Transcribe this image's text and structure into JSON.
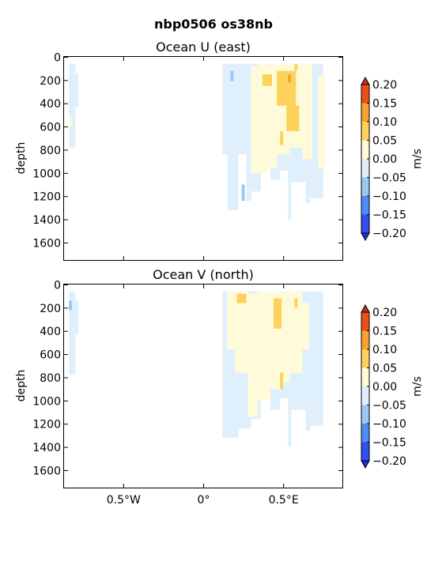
{
  "figure_title": "nbp0506 os38nb",
  "chart_data": [
    {
      "type": "heatmap",
      "title": "Ocean U (east)",
      "ylabel": "depth",
      "xlabel": "",
      "xlim": [
        -0.87,
        0.87
      ],
      "ylim": [
        1750,
        0
      ],
      "x_ticks": [
        -0.5,
        0,
        0.5
      ],
      "x_tick_labels": [
        "",
        "",
        ""
      ],
      "y_ticks": [
        0,
        200,
        400,
        600,
        800,
        1000,
        1200,
        1400,
        1600
      ],
      "y_tick_labels": [
        "0",
        "200",
        "400",
        "600",
        "800",
        "1000",
        "1200",
        "1400",
        "1600"
      ],
      "colorbar": {
        "label": "m/s",
        "levels": [
          -0.2,
          -0.15,
          -0.1,
          -0.05,
          0.0,
          0.05,
          0.1,
          0.15,
          0.2
        ],
        "tick_labels": [
          "−0.20",
          "−0.15",
          "−0.10",
          "−0.05",
          "0.00",
          "0.05",
          "0.10",
          "0.15",
          "0.20"
        ],
        "colors": [
          "#3050f0",
          "#4f8cf5",
          "#9cc7f5",
          "#dff0fc",
          "#fffbd9",
          "#fdd25c",
          "#f8a030",
          "#e8501e"
        ],
        "extend": "both"
      },
      "cells": [
        {
          "x0": -0.84,
          "x1": -0.8,
          "y0": 60,
          "y1": 780,
          "v": -0.02
        },
        {
          "x0": -0.8,
          "x1": -0.78,
          "y0": 140,
          "y1": 430,
          "v": -0.02
        },
        {
          "x0": -0.84,
          "x1": -0.82,
          "y0": 520,
          "y1": 600,
          "v": 0.02
        },
        {
          "x0": 0.12,
          "x1": 0.15,
          "y0": 60,
          "y1": 840,
          "v": -0.02
        },
        {
          "x0": 0.15,
          "x1": 0.22,
          "y0": 60,
          "y1": 1320,
          "v": -0.02
        },
        {
          "x0": 0.22,
          "x1": 0.27,
          "y0": 60,
          "y1": 840,
          "v": -0.02
        },
        {
          "x0": 0.27,
          "x1": 0.3,
          "y0": 60,
          "y1": 1240,
          "v": -0.02
        },
        {
          "x0": 0.3,
          "x1": 0.36,
          "y0": 60,
          "y1": 1160,
          "v": -0.02
        },
        {
          "x0": 0.36,
          "x1": 0.42,
          "y0": 60,
          "y1": 900,
          "v": -0.02
        },
        {
          "x0": 0.42,
          "x1": 0.48,
          "y0": 60,
          "y1": 1060,
          "v": -0.02
        },
        {
          "x0": 0.48,
          "x1": 0.53,
          "y0": 60,
          "y1": 980,
          "v": -0.02
        },
        {
          "x0": 0.53,
          "x1": 0.55,
          "y0": 60,
          "y1": 1400,
          "v": -0.02
        },
        {
          "x0": 0.55,
          "x1": 0.64,
          "y0": 60,
          "y1": 1080,
          "v": -0.02
        },
        {
          "x0": 0.64,
          "x1": 0.67,
          "y0": 60,
          "y1": 1260,
          "v": -0.02
        },
        {
          "x0": 0.67,
          "x1": 0.75,
          "y0": 60,
          "y1": 1220,
          "v": -0.02
        },
        {
          "x0": 0.3,
          "x1": 0.34,
          "y0": 80,
          "y1": 1000,
          "v": 0.02
        },
        {
          "x0": 0.34,
          "x1": 0.4,
          "y0": 60,
          "y1": 1000,
          "v": 0.02
        },
        {
          "x0": 0.4,
          "x1": 0.46,
          "y0": 60,
          "y1": 960,
          "v": 0.02
        },
        {
          "x0": 0.46,
          "x1": 0.54,
          "y0": 60,
          "y1": 840,
          "v": 0.02
        },
        {
          "x0": 0.54,
          "x1": 0.62,
          "y0": 60,
          "y1": 780,
          "v": 0.02
        },
        {
          "x0": 0.62,
          "x1": 0.68,
          "y0": 60,
          "y1": 880,
          "v": 0.02
        },
        {
          "x0": 0.72,
          "x1": 0.76,
          "y0": 160,
          "y1": 960,
          "v": 0.02
        },
        {
          "x0": 0.37,
          "x1": 0.43,
          "y0": 150,
          "y1": 250,
          "v": 0.07
        },
        {
          "x0": 0.46,
          "x1": 0.58,
          "y0": 120,
          "y1": 420,
          "v": 0.07
        },
        {
          "x0": 0.52,
          "x1": 0.6,
          "y0": 420,
          "y1": 640,
          "v": 0.07
        },
        {
          "x0": 0.48,
          "x1": 0.5,
          "y0": 640,
          "y1": 760,
          "v": 0.07
        },
        {
          "x0": 0.57,
          "x1": 0.59,
          "y0": 60,
          "y1": 120,
          "v": 0.07
        },
        {
          "x0": 0.53,
          "x1": 0.55,
          "y0": 150,
          "y1": 220,
          "v": 0.12
        },
        {
          "x0": 0.17,
          "x1": 0.19,
          "y0": 120,
          "y1": 210,
          "v": -0.07
        },
        {
          "x0": 0.24,
          "x1": 0.26,
          "y0": 1100,
          "y1": 1240,
          "v": -0.07
        }
      ]
    },
    {
      "type": "heatmap",
      "title": "Ocean V (north)",
      "ylabel": "depth",
      "xlabel": "",
      "xlim": [
        -0.87,
        0.87
      ],
      "ylim": [
        1750,
        0
      ],
      "x_ticks": [
        -0.5,
        0,
        0.5
      ],
      "x_tick_labels": [
        "0.5°W",
        "0°",
        "0.5°E"
      ],
      "y_ticks": [
        0,
        200,
        400,
        600,
        800,
        1000,
        1200,
        1400,
        1600
      ],
      "y_tick_labels": [
        "0",
        "200",
        "400",
        "600",
        "800",
        "1000",
        "1200",
        "1400",
        "1600"
      ],
      "colorbar": {
        "label": "m/s",
        "levels": [
          -0.2,
          -0.15,
          -0.1,
          -0.05,
          0.0,
          0.05,
          0.1,
          0.15,
          0.2
        ],
        "tick_labels": [
          "−0.20",
          "−0.15",
          "−0.10",
          "−0.05",
          "0.00",
          "0.05",
          "0.10",
          "0.15",
          "0.20"
        ],
        "colors": [
          "#3050f0",
          "#4f8cf5",
          "#9cc7f5",
          "#dff0fc",
          "#fffbd9",
          "#fdd25c",
          "#f8a030",
          "#e8501e"
        ],
        "extend": "both"
      },
      "cells": [
        {
          "x0": -0.84,
          "x1": -0.8,
          "y0": 60,
          "y1": 780,
          "v": -0.02
        },
        {
          "x0": -0.8,
          "x1": -0.78,
          "y0": 140,
          "y1": 430,
          "v": -0.02
        },
        {
          "x0": -0.84,
          "x1": -0.82,
          "y0": 140,
          "y1": 220,
          "v": -0.07
        },
        {
          "x0": 0.12,
          "x1": 0.15,
          "y0": 60,
          "y1": 1320,
          "v": -0.02
        },
        {
          "x0": 0.15,
          "x1": 0.22,
          "y0": 60,
          "y1": 1320,
          "v": -0.02
        },
        {
          "x0": 0.22,
          "x1": 0.27,
          "y0": 60,
          "y1": 1240,
          "v": -0.02
        },
        {
          "x0": 0.27,
          "x1": 0.3,
          "y0": 60,
          "y1": 1240,
          "v": -0.02
        },
        {
          "x0": 0.3,
          "x1": 0.36,
          "y0": 60,
          "y1": 1160,
          "v": -0.02
        },
        {
          "x0": 0.36,
          "x1": 0.42,
          "y0": 60,
          "y1": 900,
          "v": -0.02
        },
        {
          "x0": 0.42,
          "x1": 0.48,
          "y0": 60,
          "y1": 1080,
          "v": -0.02
        },
        {
          "x0": 0.48,
          "x1": 0.53,
          "y0": 60,
          "y1": 980,
          "v": -0.02
        },
        {
          "x0": 0.53,
          "x1": 0.55,
          "y0": 60,
          "y1": 1400,
          "v": -0.02
        },
        {
          "x0": 0.55,
          "x1": 0.64,
          "y0": 60,
          "y1": 1080,
          "v": -0.02
        },
        {
          "x0": 0.64,
          "x1": 0.67,
          "y0": 60,
          "y1": 1260,
          "v": -0.02
        },
        {
          "x0": 0.67,
          "x1": 0.75,
          "y0": 60,
          "y1": 1220,
          "v": -0.02
        },
        {
          "x0": 0.15,
          "x1": 0.2,
          "y0": 60,
          "y1": 560,
          "v": 0.02
        },
        {
          "x0": 0.2,
          "x1": 0.28,
          "y0": 60,
          "y1": 760,
          "v": 0.02
        },
        {
          "x0": 0.28,
          "x1": 0.34,
          "y0": 80,
          "y1": 1140,
          "v": 0.02
        },
        {
          "x0": 0.34,
          "x1": 0.42,
          "y0": 60,
          "y1": 1000,
          "v": 0.02
        },
        {
          "x0": 0.42,
          "x1": 0.48,
          "y0": 60,
          "y1": 900,
          "v": 0.02
        },
        {
          "x0": 0.48,
          "x1": 0.54,
          "y0": 60,
          "y1": 840,
          "v": 0.02
        },
        {
          "x0": 0.54,
          "x1": 0.62,
          "y0": 60,
          "y1": 760,
          "v": 0.02
        },
        {
          "x0": 0.62,
          "x1": 0.66,
          "y0": 160,
          "y1": 560,
          "v": 0.02
        },
        {
          "x0": 0.21,
          "x1": 0.27,
          "y0": 80,
          "y1": 160,
          "v": 0.07
        },
        {
          "x0": 0.44,
          "x1": 0.49,
          "y0": 120,
          "y1": 380,
          "v": 0.07
        },
        {
          "x0": 0.48,
          "x1": 0.5,
          "y0": 760,
          "y1": 900,
          "v": 0.07
        },
        {
          "x0": 0.57,
          "x1": 0.59,
          "y0": 120,
          "y1": 200,
          "v": 0.07
        }
      ]
    }
  ]
}
